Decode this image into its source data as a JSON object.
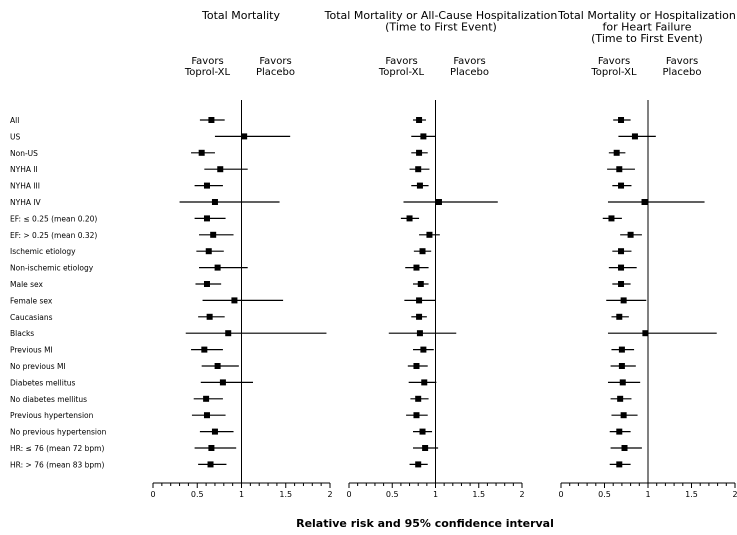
{
  "chart_data": {
    "type": "forest",
    "xlabel": "Relative risk and 95% confidence interval",
    "xlim": [
      0,
      2
    ],
    "x_ticks": [
      "0",
      "0.5",
      "1",
      "1.5",
      "2"
    ],
    "reference_line": 1,
    "favors_left": [
      "Favors",
      "Toprol-XL"
    ],
    "favors_right": [
      "Favors",
      "Placebo"
    ],
    "rows": [
      "All",
      "US",
      "Non-US",
      "NYHA II",
      "NYHA III",
      "NYHA IV",
      "EF: ≤ 0.25 (mean 0.20)",
      "EF: > 0.25 (mean 0.32)",
      "Ischemic etiology",
      "Non-ischemic etiology",
      "Male sex",
      "Female sex",
      "Caucasians",
      "Blacks",
      "Previous MI",
      "No previous MI",
      "Diabetes mellitus",
      "No diabetes mellitus",
      "Previous hypertension",
      "No previous hypertension",
      "HR: ≤ 76 (mean 72 bpm)",
      "HR: > 76 (mean 83 bpm)"
    ],
    "panels": [
      {
        "title": [
          "Total Mortality"
        ],
        "point": [
          0.66,
          1.03,
          0.55,
          0.76,
          0.61,
          0.7,
          0.61,
          0.68,
          0.63,
          0.73,
          0.61,
          0.92,
          0.64,
          0.85,
          0.58,
          0.73,
          0.79,
          0.6,
          0.61,
          0.7,
          0.66,
          0.65
        ],
        "lower": [
          0.53,
          0.7,
          0.43,
          0.58,
          0.47,
          0.3,
          0.47,
          0.52,
          0.49,
          0.52,
          0.48,
          0.56,
          0.51,
          0.37,
          0.43,
          0.55,
          0.54,
          0.46,
          0.44,
          0.53,
          0.47,
          0.51
        ],
        "upper": [
          0.81,
          1.55,
          0.7,
          1.07,
          0.79,
          1.43,
          0.82,
          0.91,
          0.8,
          1.07,
          0.77,
          1.47,
          0.81,
          1.96,
          0.79,
          0.97,
          1.13,
          0.79,
          0.82,
          0.91,
          0.94,
          0.83
        ]
      },
      {
        "title": [
          "Total Mortality or All-Cause Hospitalization",
          "(Time to First Event)"
        ],
        "point": [
          0.81,
          0.86,
          0.81,
          0.8,
          0.82,
          1.04,
          0.7,
          0.93,
          0.85,
          0.78,
          0.83,
          0.81,
          0.81,
          0.82,
          0.86,
          0.78,
          0.87,
          0.8,
          0.78,
          0.85,
          0.88,
          0.8
        ],
        "lower": [
          0.74,
          0.72,
          0.72,
          0.7,
          0.72,
          0.63,
          0.6,
          0.81,
          0.75,
          0.65,
          0.74,
          0.64,
          0.72,
          0.46,
          0.74,
          0.68,
          0.69,
          0.71,
          0.66,
          0.74,
          0.74,
          0.7
        ],
        "upper": [
          0.89,
          1.0,
          0.91,
          0.93,
          0.92,
          1.72,
          0.81,
          1.05,
          0.95,
          0.92,
          0.92,
          1.0,
          0.9,
          1.24,
          0.98,
          0.91,
          1.01,
          0.92,
          0.91,
          0.96,
          1.03,
          0.91
        ]
      },
      {
        "title": [
          "Total Mortality or Hospitalization",
          "for Heart Failure",
          "(Time to First Event)"
        ],
        "point": [
          0.69,
          0.85,
          0.64,
          0.67,
          0.69,
          0.96,
          0.58,
          0.8,
          0.69,
          0.69,
          0.69,
          0.72,
          0.67,
          0.97,
          0.7,
          0.7,
          0.71,
          0.68,
          0.72,
          0.67,
          0.73,
          0.67
        ],
        "lower": [
          0.6,
          0.66,
          0.55,
          0.53,
          0.59,
          0.54,
          0.48,
          0.68,
          0.59,
          0.55,
          0.59,
          0.52,
          0.58,
          0.54,
          0.58,
          0.57,
          0.54,
          0.57,
          0.58,
          0.56,
          0.57,
          0.56
        ],
        "upper": [
          0.8,
          1.09,
          0.74,
          0.85,
          0.81,
          1.65,
          0.7,
          0.93,
          0.81,
          0.87,
          0.8,
          0.98,
          0.78,
          1.79,
          0.84,
          0.86,
          0.91,
          0.81,
          0.88,
          0.8,
          0.93,
          0.8
        ]
      }
    ]
  }
}
